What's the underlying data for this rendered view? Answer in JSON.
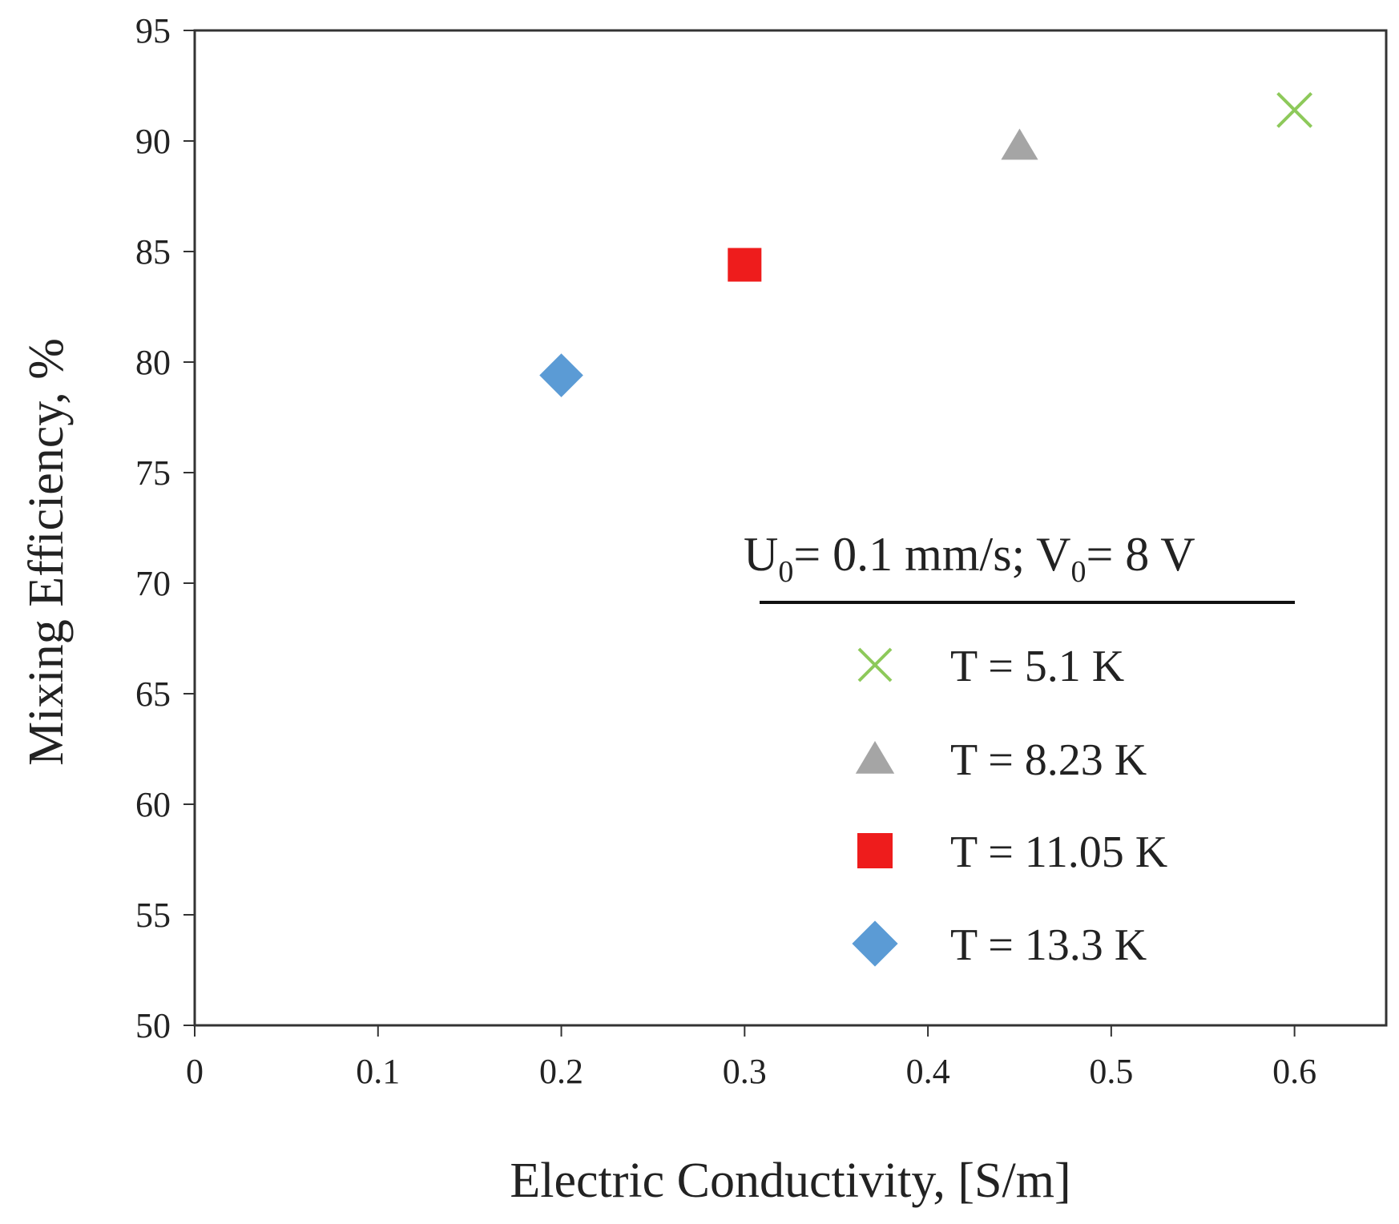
{
  "chart_data": {
    "type": "scatter",
    "xlabel": "Electric Conductivity, [S/m]",
    "ylabel": "Mixing Efficiency, %",
    "xlim": [
      0,
      0.65
    ],
    "ylim": [
      50,
      95
    ],
    "x_ticks": [
      "0",
      "0.1",
      "0.2",
      "0.3",
      "0.4",
      "0.5",
      "0.6"
    ],
    "x_tick_values": [
      0,
      0.1,
      0.2,
      0.3,
      0.4,
      0.5,
      0.6
    ],
    "y_ticks": [
      "50",
      "55",
      "60",
      "65",
      "70",
      "75",
      "80",
      "85",
      "90",
      "95"
    ],
    "y_tick_values": [
      50,
      55,
      60,
      65,
      70,
      75,
      80,
      85,
      90,
      95
    ],
    "grid": false,
    "legend": {
      "position": "lower-right",
      "title_parts": {
        "u": "U",
        "u_sub": "0",
        "mid": "= 0.1 mm/s; V",
        "v_sub": "0",
        "end": "=  8 V"
      }
    },
    "series": [
      {
        "name": "T = 5.1 K",
        "marker": "x",
        "color": "#8dc95a",
        "x": [
          0.6
        ],
        "y": [
          91.4
        ]
      },
      {
        "name": "T = 8.23 K",
        "marker": "triangle",
        "color": "#a5a5a5",
        "x": [
          0.45
        ],
        "y": [
          89.8
        ]
      },
      {
        "name": "T = 11.05 K",
        "marker": "square",
        "color": "#ee1c1c",
        "x": [
          0.3
        ],
        "y": [
          84.4
        ]
      },
      {
        "name": "T = 13.3 K",
        "marker": "diamond",
        "color": "#5b9bd5",
        "x": [
          0.2
        ],
        "y": [
          79.4
        ]
      }
    ]
  }
}
